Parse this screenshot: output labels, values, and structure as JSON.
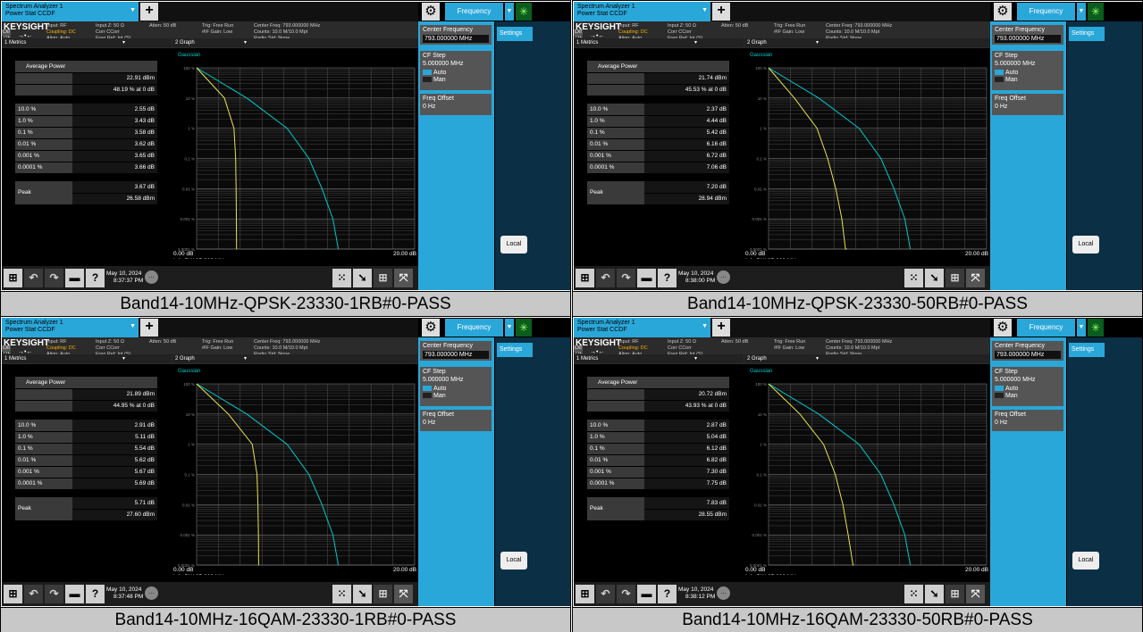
{
  "common": {
    "window_tab_line1": "Spectrum Analyzer 1",
    "window_tab_line2": "Power Stat CCDF",
    "frequency_button": "Frequency",
    "brand": "KEYSIGHT",
    "rl": "RL",
    "lxi": "LXI",
    "info": {
      "input_rf": "Input: RF",
      "coupling": "Coupling: DC",
      "align": "Align: Auto",
      "input_z": "Input Z: 50 Ω",
      "corr": "Corr CCorr",
      "freq_ref": "Freq Ref: Int (S)",
      "atten": "Atten: 50 dB",
      "trig": "Trig: Free Run",
      "if_gain": "#IF Gain: Low",
      "center_freq": "Center Freq: 793.000000 MHz",
      "counts": "Counts: 10.0 M/10.0 Mpt",
      "radio_std": "Radio Std: None"
    },
    "panel": {
      "center_frequency_label": "Center Frequency",
      "center_frequency_value": "793.000000 MHz",
      "cf_step_label": "CF Step",
      "cf_step_value": "5.000000 MHz",
      "auto": "Auto",
      "man": "Man",
      "freq_offset_label": "Freq Offset",
      "freq_offset_value": "0 Hz",
      "settings_tab": "Settings",
      "local_button": "Local"
    },
    "metrics_dropdown": "1 Metrics",
    "graph_dropdown": "2 Graph",
    "gaussian_label": "Gaussian",
    "y_ticks": [
      "100 %",
      "10 %",
      "1 %",
      "0.1 %",
      "0.01 %",
      "0.001 %",
      "0.0001 %"
    ],
    "x_start": "0.00 dB",
    "x_end": "20.00 dB",
    "info_bw": "Info BW 25.000 MHz",
    "average_power_label": "Average Power",
    "peak_label": "Peak",
    "pct_labels": [
      "10.0 %",
      "1.0 %",
      "0.1 %",
      "0.01 %",
      "0.001 %",
      "0.0001 %"
    ]
  },
  "panels": [
    {
      "caption": "Band14-10MHz-QPSK-23330-1RB#0-PASS",
      "avg_power": "22.91 dBm",
      "pct_at_0db": "48.19 % at 0 dB",
      "values": [
        "2.55 dB",
        "3.43 dB",
        "3.58 dB",
        "3.62 dB",
        "3.65 dB",
        "3.66 dB"
      ],
      "peak_db": "3.67 dB",
      "peak_dbm": "26.58 dBm",
      "date": "May 10, 2024",
      "time": "8:37:37 PM"
    },
    {
      "caption": "Band14-10MHz-QPSK-23330-50RB#0-PASS",
      "avg_power": "21.74 dBm",
      "pct_at_0db": "45.53 % at 0 dB",
      "values": [
        "2.37 dB",
        "4.44 dB",
        "5.42 dB",
        "6.16 dB",
        "6.72 dB",
        "7.06 dB"
      ],
      "peak_db": "7.20 dB",
      "peak_dbm": "28.94 dBm",
      "date": "May 10, 2024",
      "time": "8:38:00 PM"
    },
    {
      "caption": "Band14-10MHz-16QAM-23330-1RB#0-PASS",
      "avg_power": "21.89 dBm",
      "pct_at_0db": "44.95 % at 0 dB",
      "values": [
        "2.91 dB",
        "5.11 dB",
        "5.54 dB",
        "5.62 dB",
        "5.67 dB",
        "5.69 dB"
      ],
      "peak_db": "5.71 dB",
      "peak_dbm": "27.60 dBm",
      "date": "May 10, 2024",
      "time": "8:37:48 PM"
    },
    {
      "caption": "Band14-10MHz-16QAM-23330-50RB#0-PASS",
      "avg_power": "20.72 dBm",
      "pct_at_0db": "43.93 % at 0 dB",
      "values": [
        "2.87 dB",
        "5.04 dB",
        "6.12 dB",
        "6.82 dB",
        "7.30 dB",
        "7.75 dB"
      ],
      "peak_db": "7.83 dB",
      "peak_dbm": "28.55 dBm",
      "date": "May 10, 2024",
      "time": "8:38:12 PM"
    }
  ],
  "colors": {
    "accent": "#2aa7d9",
    "gaussian_trace": "#00c8c8",
    "measured_trace": "#e6e64a",
    "caption_bg": "#c8c8c8"
  },
  "icons": {
    "taskbar": [
      "windows-icon",
      "undo-icon",
      "redo-icon",
      "folder-icon",
      "help-icon",
      "chat-icon",
      "keypad-icon",
      "pointer-icon",
      "grid-icon",
      "fullscreen-icon"
    ]
  }
}
